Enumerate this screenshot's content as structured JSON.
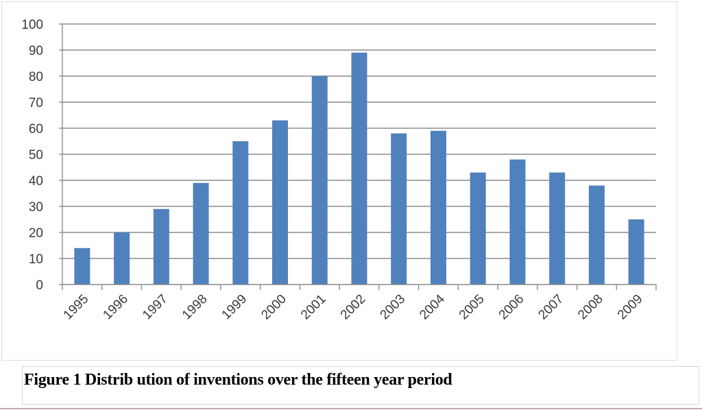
{
  "caption": "Figure 1 Distrib ution of inventions over the fifteen year period",
  "colors": {
    "bar": "#4f81bd",
    "grid": "#8c8c8c",
    "axis": "#8c8c8c",
    "text": "#3a3a3a"
  },
  "chart_data": {
    "type": "bar",
    "title": "",
    "xlabel": "",
    "ylabel": "",
    "categories": [
      "1995",
      "1996",
      "1997",
      "1998",
      "1999",
      "2000",
      "2001",
      "2002",
      "2003",
      "2004",
      "2005",
      "2006",
      "2007",
      "2008",
      "2009"
    ],
    "values": [
      14,
      20,
      29,
      39,
      55,
      63,
      80,
      89,
      58,
      59,
      43,
      48,
      43,
      38,
      25
    ],
    "ylim": [
      0,
      100
    ],
    "yticks": [
      0,
      10,
      20,
      30,
      40,
      50,
      60,
      70,
      80,
      90,
      100
    ],
    "grid": true,
    "legend": "none"
  }
}
